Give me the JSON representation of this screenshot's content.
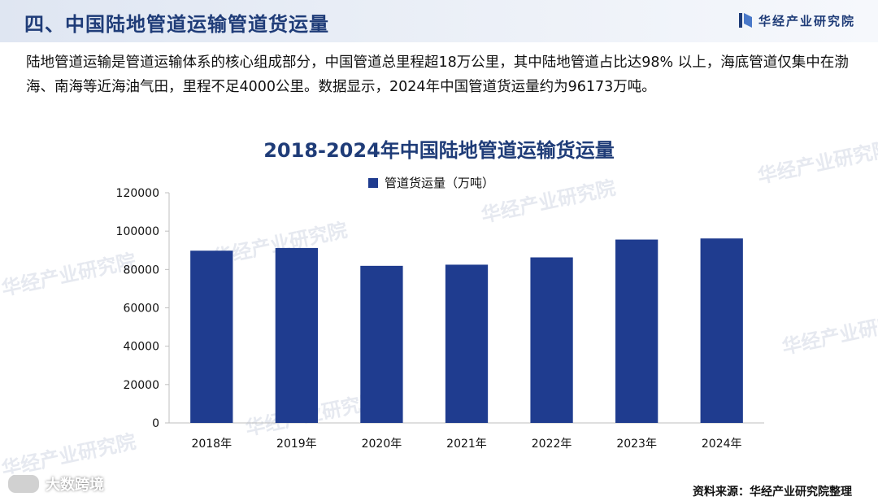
{
  "header": {
    "section_title": "四、中国陆地管道运输管道货运量",
    "brand_name": "华经产业研究院"
  },
  "intro_text": "陆地管道运输是管道运输体系的核心组成部分，中国管道总里程超18万公里，其中陆地管道占比达98% 以上，海底管道仅集中在渤海、南海等近海油气田，里程不足4000公里。数据显示，2024年中国管道货运量约为96173万吨。",
  "watermark_text": "华经产业研究院",
  "chart_data": {
    "type": "bar",
    "title": "2018-2024年中国陆地管道运输货运量",
    "categories": [
      "2018年",
      "2019年",
      "2020年",
      "2021年",
      "2022年",
      "2023年",
      "2024年"
    ],
    "series": [
      {
        "name": "管道货运量（万吨）",
        "values": [
          89800,
          91200,
          81900,
          82500,
          86300,
          95600,
          96173
        ]
      }
    ],
    "ylim": [
      0,
      120000
    ],
    "yticks": [
      "0",
      "20000",
      "40000",
      "60000",
      "80000",
      "100000",
      "120000"
    ],
    "grid": false,
    "legend": "top-center",
    "bar_color": "#1f3c8f"
  },
  "footer": {
    "source": "资料来源：华经产业研究院整理",
    "corner_logo_text": "大数跨境"
  },
  "colors": {
    "title_blue": "#1f3c78",
    "bar_blue": "#1f3c8f"
  }
}
